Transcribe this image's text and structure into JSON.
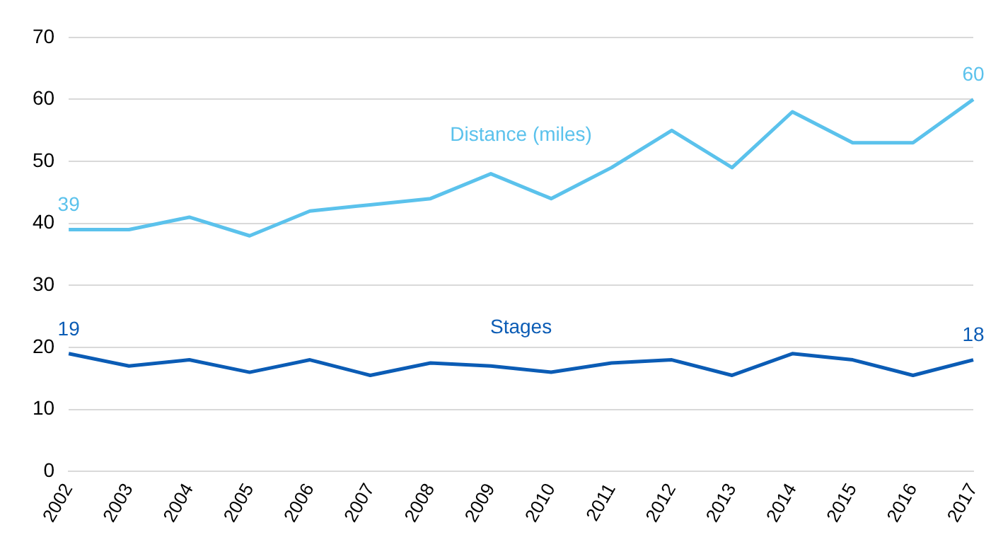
{
  "chart_data": {
    "type": "line",
    "categories": [
      "2002",
      "2003",
      "2004",
      "2005",
      "2006",
      "2007",
      "2008",
      "2009",
      "2010",
      "2011",
      "2012",
      "2013",
      "2014",
      "2015",
      "2016",
      "2017"
    ],
    "series": [
      {
        "name": "Distance (miles)",
        "color": "#5bc2ec",
        "values": [
          39,
          39,
          41,
          38,
          42,
          43,
          44,
          48,
          44,
          49,
          55,
          49,
          58,
          53,
          53,
          60
        ],
        "value_labels": [
          "39",
          null,
          null,
          null,
          null,
          null,
          null,
          null,
          null,
          null,
          null,
          null,
          null,
          null,
          null,
          "60"
        ]
      },
      {
        "name": "Stages",
        "color": "#0b5cb5",
        "values": [
          19,
          17,
          18,
          16,
          18,
          15.5,
          17.5,
          17,
          16,
          17.5,
          18,
          15.5,
          19,
          18,
          15.5,
          18
        ],
        "value_labels": [
          "19",
          null,
          null,
          null,
          null,
          null,
          null,
          null,
          null,
          null,
          null,
          null,
          null,
          null,
          null,
          "18"
        ]
      }
    ],
    "ylim": [
      0,
      70
    ],
    "yticks": [
      0,
      10,
      20,
      30,
      40,
      50,
      60,
      70
    ],
    "grid": "y",
    "legend": false,
    "marker": "none",
    "line_style": "solid"
  }
}
